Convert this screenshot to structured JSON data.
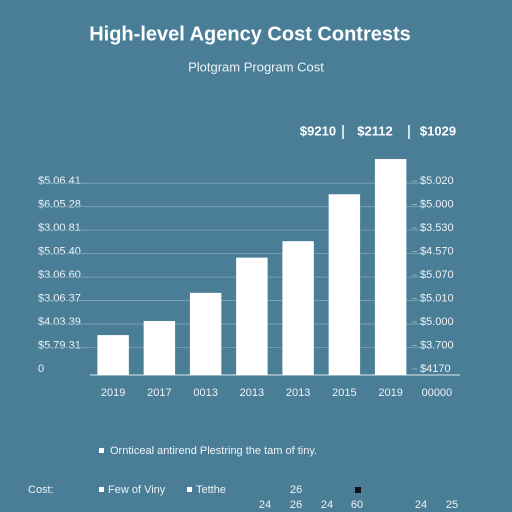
{
  "chart_data": {
    "type": "bar",
    "title": "High-level Agency Cost Contrests",
    "subtitle": "Plotgram Program Cost",
    "annotations": [
      "$9210",
      "$2112",
      "$1029"
    ],
    "categories": [
      "2019",
      "2017",
      "0013",
      "2013",
      "2013",
      "2015",
      "2019",
      "00000"
    ],
    "values": [
      1.7,
      2.3,
      3.5,
      5.0,
      5.7,
      7.7,
      9.2,
      null
    ],
    "color": "#ffffff",
    "ylim": [
      0,
      9.5
    ],
    "yticks": [
      0,
      {
        "value": 1,
        "label": "$5.79 31"
      },
      {
        "value": 2,
        "label": "$4.03 39"
      },
      {
        "value": 3,
        "label": "$3.06 37"
      },
      {
        "value": 4,
        "label": "$3.06 60"
      },
      {
        "value": 5,
        "label": "$5.05 40"
      },
      {
        "value": 6,
        "label": "$3.00 81"
      },
      {
        "value": 7,
        "label": "$6.05 28"
      },
      {
        "value": 8,
        "label": "$5.06 41"
      }
    ],
    "y2lim": [
      0,
      9.5
    ],
    "y2ticks": [
      {
        "value": 0,
        "label": "$4170"
      },
      {
        "value": 1,
        "label": "$3.700"
      },
      {
        "value": 2,
        "label": "$5.000"
      },
      {
        "value": 3,
        "label": "$5.010"
      },
      {
        "value": 4,
        "label": "$5.070"
      },
      {
        "value": 5,
        "label": "$4.570"
      },
      {
        "value": 6,
        "label": "$3.530"
      },
      {
        "value": 7,
        "label": "$5.000"
      },
      {
        "value": 8,
        "label": "$5.020"
      }
    ],
    "grid": true,
    "footnote": "Ornticeal antirend Plestring the tam of tiny.",
    "legend_items": [
      "Cost:",
      "Few of Viny",
      "Tetthe",
      "26"
    ],
    "bottom_numbers": [
      24,
      26,
      24,
      60,
      24,
      25
    ]
  }
}
